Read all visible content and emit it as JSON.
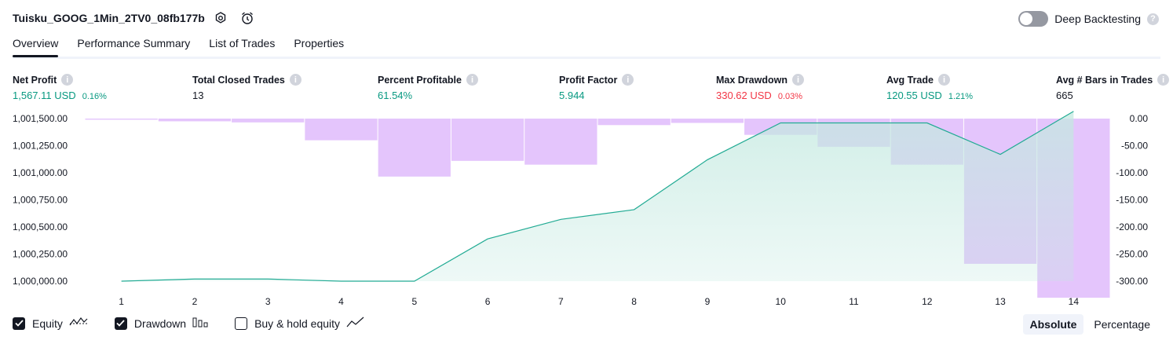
{
  "header": {
    "title": "Tuisku_GOOG_1Min_2TV0_08fb177b",
    "deep_backtesting_label": "Deep Backtesting",
    "help_glyph": "?"
  },
  "tabs": [
    {
      "label": "Overview",
      "active": true
    },
    {
      "label": "Performance Summary",
      "active": false
    },
    {
      "label": "List of Trades",
      "active": false
    },
    {
      "label": "Properties",
      "active": false
    }
  ],
  "metrics": {
    "net_profit": {
      "label": "Net Profit",
      "value": "1,567.11 USD",
      "pct": "0.16%"
    },
    "total_closed_trades": {
      "label": "Total Closed Trades",
      "value": "13"
    },
    "percent_profitable": {
      "label": "Percent Profitable",
      "value": "61.54%"
    },
    "profit_factor": {
      "label": "Profit Factor",
      "value": "5.944"
    },
    "max_drawdown": {
      "label": "Max Drawdown",
      "value": "330.62 USD",
      "pct": "0.03%"
    },
    "avg_trade": {
      "label": "Avg Trade",
      "value": "120.55 USD",
      "pct": "1.21%"
    },
    "avg_bars": {
      "label": "Avg # Bars in Trades",
      "value": "665"
    }
  },
  "colors": {
    "equity_line": "#22ab94",
    "equity_fill": "#c3e9e0",
    "drawdown": "#e1bffc",
    "profit": "#089981",
    "loss": "#f23645"
  },
  "chart_data": {
    "type": "area",
    "x": [
      1,
      2,
      3,
      4,
      5,
      6,
      7,
      8,
      9,
      10,
      11,
      12,
      13,
      14
    ],
    "y_left_ticks": [
      "1,001,500.00",
      "1,001,250.00",
      "1,001,000.00",
      "1,000,750.00",
      "1,000,500.00",
      "1,000,250.00",
      "1,000,000.00"
    ],
    "y_right_ticks": [
      "0.00",
      "-50.00",
      "-100.00",
      "-150.00",
      "-200.00",
      "-250.00",
      "-300.00"
    ],
    "ylim_left": [
      1000000,
      1001500
    ],
    "ylim_right": [
      -300,
      0
    ],
    "series": [
      {
        "name": "Equity",
        "values": [
          1000000,
          1000020,
          1000020,
          1000000,
          1000000,
          1000390,
          1000570,
          1000660,
          1001120,
          1001460,
          1001460,
          1001460,
          1001170,
          1001567
        ]
      },
      {
        "name": "Drawdown",
        "values": [
          -2,
          -5,
          -7,
          -40,
          -107,
          -78,
          -85,
          -12,
          -8,
          -30,
          -52,
          -85,
          -268,
          -330.62
        ]
      }
    ],
    "legend_items": [
      {
        "label": "Equity",
        "checked": true,
        "icon": "equity-icon"
      },
      {
        "label": "Drawdown",
        "checked": true,
        "icon": "drawdown-icon"
      },
      {
        "label": "Buy & hold equity",
        "checked": false,
        "icon": "buy-hold-icon"
      }
    ]
  },
  "mode": {
    "absolute": "Absolute",
    "percentage": "Percentage"
  }
}
